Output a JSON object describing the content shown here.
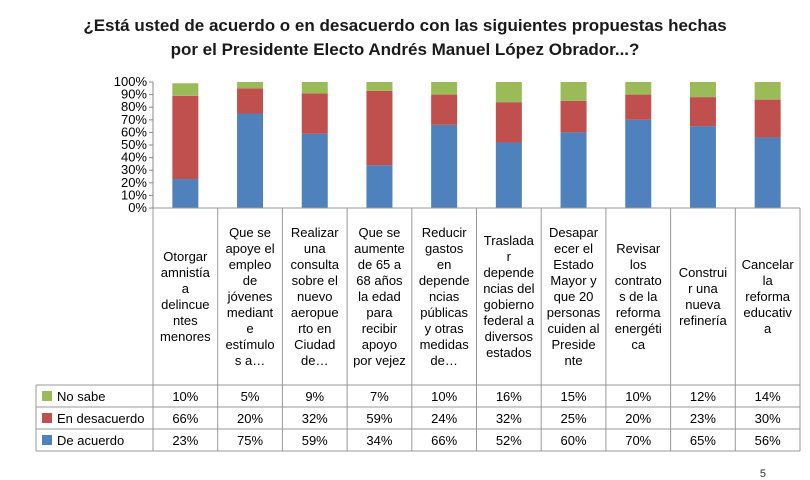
{
  "title_line1": "¿Está usted de acuerdo o en desacuerdo con las siguientes propuestas hechas",
  "title_line2": "por el Presidente Electo Andrés Manuel López Obrador...?",
  "page_number": "5",
  "chart_data": {
    "type": "bar",
    "stacked": true,
    "percent": true,
    "title": "¿Está usted de acuerdo o en desacuerdo con las siguientes propuestas hechas por el Presidente Electo Andrés Manuel López Obrador...?",
    "ylim": [
      0,
      100
    ],
    "y_ticks": [
      "0%",
      "10%",
      "20%",
      "30%",
      "40%",
      "50%",
      "60%",
      "70%",
      "80%",
      "90%",
      "100%"
    ],
    "categories": [
      "Otorgar amnistía a delincuentes menores",
      "Que se apoye el empleo de jóvenes mediante estímulos a…",
      "Realizar una consulta sobre el nuevo aeropuerto en Ciudad de…",
      "Que se aumente de 65 a 68 años la edad para recibir apoyo por vejez",
      "Reducir gastos en dependencias públicas y otras medidas de…",
      "Trasladar dependencias del gobierno federal a diversos estados",
      "Desaparecer el Estado Mayor y que 20 personas cuiden al Presidente",
      "Revisar los contratos de la reforma energética",
      "Construir una nueva refinería",
      "Cancelar la reforma educativa"
    ],
    "category_labels": [
      "Otorgar\namnistía\na\ndelincue\nntes\nmenores",
      "Que se\napoye el\nempleo\nde\njóvenes\nmediant\ne\nestímulo\ns a…",
      "Realizar\nuna\nconsulta\nsobre el\nnuevo\naeropue\nrto en\nCiudad\nde…",
      "Que se\naumente\nde 65 a\n68 años\nla edad\npara\nrecibir\napoyo\npor vejez",
      "Reducir\ngastos\nen\ndepende\nncias\npúblicas\ny otras\nmedidas\nde…",
      "Traslada\nr\ndepende\nncias del\ngobierno\nfederal a\ndiversos\nestados",
      "Desapar\necer el\nEstado\nMayor y\nque 20\npersonas\ncuiden al\nPreside\nnte",
      "Revisar\nlos\ncontrato\ns de la\nreforma\nenergéti\nca",
      "Construi\nr una\nnueva\nrefinería",
      "Cancelar\nla\nreforma\neducativ\na"
    ],
    "series": [
      {
        "name": "De acuerdo",
        "color": "#4f81bd",
        "values": [
          23,
          75,
          59,
          34,
          66,
          52,
          60,
          70,
          65,
          56
        ],
        "labels": [
          "23%",
          "75%",
          "59%",
          "34%",
          "66%",
          "52%",
          "60%",
          "70%",
          "65%",
          "56%"
        ]
      },
      {
        "name": "En desacuerdo",
        "color": "#c0504d",
        "values": [
          66,
          20,
          32,
          59,
          24,
          32,
          25,
          20,
          23,
          30
        ],
        "labels": [
          "66%",
          "20%",
          "32%",
          "59%",
          "24%",
          "32%",
          "25%",
          "20%",
          "23%",
          "30%"
        ]
      },
      {
        "name": "No sabe",
        "color": "#9bbb59",
        "values": [
          10,
          5,
          9,
          7,
          10,
          16,
          15,
          10,
          12,
          14
        ],
        "labels": [
          "10%",
          "5%",
          "9%",
          "7%",
          "10%",
          "16%",
          "15%",
          "10%",
          "12%",
          "14%"
        ]
      }
    ],
    "legend_order": [
      "No sabe",
      "En desacuerdo",
      "De acuerdo"
    ],
    "data_table": true
  }
}
